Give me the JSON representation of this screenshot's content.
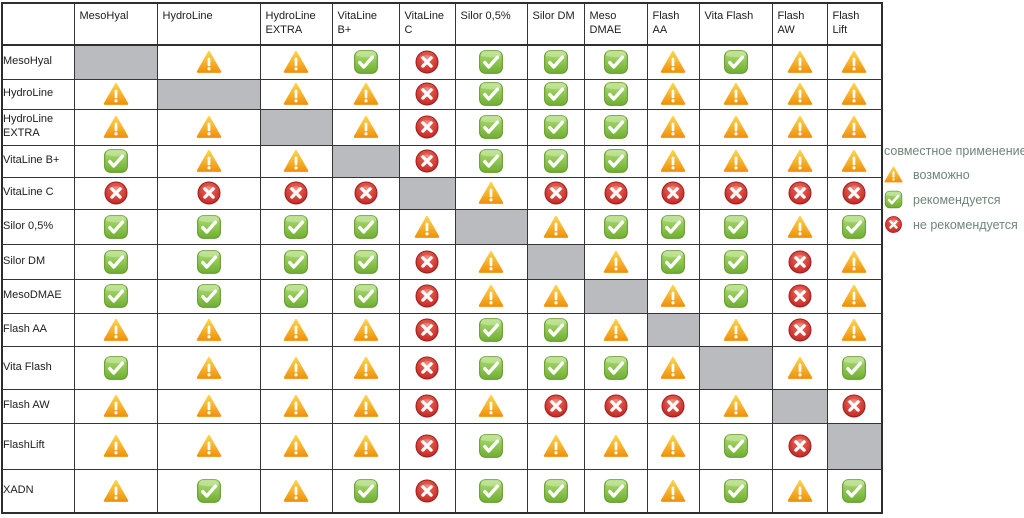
{
  "table": {
    "corner_label": "",
    "columns": [
      "MesoHyal",
      "HydroLine",
      "HydroLine EXTRA",
      "VitaLine B+",
      "VitaLine C",
      "Silor 0,5%",
      "Silor DM",
      "Meso DMAE",
      "Flash AA",
      "Vita Flash",
      "Flash AW",
      "Flash Lift"
    ],
    "rows": [
      {
        "label": "MesoHyal",
        "cells": [
          "self",
          "warn",
          "warn",
          "ok",
          "no",
          "ok",
          "ok",
          "ok",
          "warn",
          "ok",
          "warn",
          "warn"
        ]
      },
      {
        "label": "HydroLine",
        "cells": [
          "warn",
          "self",
          "warn",
          "warn",
          "no",
          "ok",
          "ok",
          "ok",
          "warn",
          "warn",
          "warn",
          "warn"
        ]
      },
      {
        "label": "HydroLine EXTRA",
        "cells": [
          "warn",
          "warn",
          "self",
          "warn",
          "no",
          "ok",
          "ok",
          "ok",
          "warn",
          "warn",
          "warn",
          "warn"
        ]
      },
      {
        "label": "VitaLine B+",
        "cells": [
          "ok",
          "warn",
          "warn",
          "self",
          "no",
          "ok",
          "ok",
          "ok",
          "warn",
          "warn",
          "warn",
          "warn"
        ]
      },
      {
        "label": "VitaLine C",
        "cells": [
          "no",
          "no",
          "no",
          "no",
          "self",
          "warn",
          "no",
          "no",
          "no",
          "no",
          "no",
          "no"
        ]
      },
      {
        "label": "Silor 0,5%",
        "cells": [
          "ok",
          "ok",
          "ok",
          "ok",
          "warn",
          "self",
          "warn",
          "ok",
          "ok",
          "ok",
          "warn",
          "ok"
        ]
      },
      {
        "label": "Silor DM",
        "cells": [
          "ok",
          "ok",
          "ok",
          "ok",
          "no",
          "warn",
          "self",
          "warn",
          "ok",
          "ok",
          "no",
          "warn"
        ]
      },
      {
        "label": "MesoDMAE",
        "cells": [
          "ok",
          "ok",
          "ok",
          "ok",
          "no",
          "warn",
          "warn",
          "self",
          "warn",
          "ok",
          "no",
          "warn"
        ]
      },
      {
        "label": "Flash AA",
        "cells": [
          "warn",
          "warn",
          "warn",
          "warn",
          "no",
          "ok",
          "ok",
          "warn",
          "self",
          "warn",
          "no",
          "warn"
        ]
      },
      {
        "label": "Vita Flash",
        "cells": [
          "ok",
          "warn",
          "warn",
          "warn",
          "no",
          "ok",
          "ok",
          "ok",
          "warn",
          "self",
          "warn",
          "ok"
        ]
      },
      {
        "label": "Flash AW",
        "cells": [
          "warn",
          "warn",
          "warn",
          "warn",
          "no",
          "warn",
          "no",
          "no",
          "no",
          "warn",
          "self",
          "no"
        ]
      },
      {
        "label": "FlashLift",
        "cells": [
          "warn",
          "warn",
          "warn",
          "warn",
          "no",
          "ok",
          "warn",
          "warn",
          "warn",
          "ok",
          "no",
          "self"
        ]
      },
      {
        "label": "XADN",
        "cells": [
          "warn",
          "ok",
          "warn",
          "ok",
          "no",
          "ok",
          "ok",
          "ok",
          "warn",
          "ok",
          "warn",
          "ok"
        ]
      }
    ]
  },
  "legend": {
    "title": "совместное применение",
    "items": [
      {
        "icon": "warning-icon",
        "symbol": "warn",
        "label": "возможно"
      },
      {
        "icon": "check-icon",
        "symbol": "ok",
        "label": "рекомендуется"
      },
      {
        "icon": "cross-icon",
        "symbol": "no",
        "label": "не рекомендуется"
      }
    ]
  },
  "colors": {
    "warn_top": "#fcd34d",
    "warn_bottom": "#f0930e",
    "ok_top": "#aede74",
    "ok_bottom": "#6fae31",
    "no_top": "#ef6d5c",
    "no_bottom": "#bb1c1c",
    "diagonal_gray": "#b9bbbe",
    "legend_text": "#6e8679",
    "grid_border": "#2e2e2e"
  },
  "chart_data": {
    "type": "table",
    "title": "совместное применение",
    "columns": [
      "MesoHyal",
      "HydroLine",
      "HydroLine EXTRA",
      "VitaLine B+",
      "VitaLine C",
      "Silor 0,5%",
      "Silor DM",
      "Meso DMAE",
      "Flash AA",
      "Vita Flash",
      "Flash AW",
      "Flash Lift"
    ],
    "row_labels": [
      "MesoHyal",
      "HydroLine",
      "HydroLine EXTRA",
      "VitaLine B+",
      "VitaLine C",
      "Silor 0,5%",
      "Silor DM",
      "MesoDMAE",
      "Flash AA",
      "Vita Flash",
      "Flash AW",
      "FlashLift",
      "XADN"
    ],
    "values": [
      [
        "self",
        "warn",
        "warn",
        "ok",
        "no",
        "ok",
        "ok",
        "ok",
        "warn",
        "ok",
        "warn",
        "warn"
      ],
      [
        "warn",
        "self",
        "warn",
        "warn",
        "no",
        "ok",
        "ok",
        "ok",
        "warn",
        "warn",
        "warn",
        "warn"
      ],
      [
        "warn",
        "warn",
        "self",
        "warn",
        "no",
        "ok",
        "ok",
        "ok",
        "warn",
        "warn",
        "warn",
        "warn"
      ],
      [
        "ok",
        "warn",
        "warn",
        "self",
        "no",
        "ok",
        "ok",
        "ok",
        "warn",
        "warn",
        "warn",
        "warn"
      ],
      [
        "no",
        "no",
        "no",
        "no",
        "self",
        "warn",
        "no",
        "no",
        "no",
        "no",
        "no",
        "no"
      ],
      [
        "ok",
        "ok",
        "ok",
        "ok",
        "warn",
        "self",
        "warn",
        "ok",
        "ok",
        "ok",
        "warn",
        "ok"
      ],
      [
        "ok",
        "ok",
        "ok",
        "ok",
        "no",
        "warn",
        "self",
        "warn",
        "ok",
        "ok",
        "no",
        "warn"
      ],
      [
        "ok",
        "ok",
        "ok",
        "ok",
        "no",
        "warn",
        "warn",
        "self",
        "warn",
        "ok",
        "no",
        "warn"
      ],
      [
        "warn",
        "warn",
        "warn",
        "warn",
        "no",
        "ok",
        "ok",
        "warn",
        "self",
        "warn",
        "no",
        "warn"
      ],
      [
        "ok",
        "warn",
        "warn",
        "warn",
        "no",
        "ok",
        "ok",
        "ok",
        "warn",
        "self",
        "warn",
        "ok"
      ],
      [
        "warn",
        "warn",
        "warn",
        "warn",
        "no",
        "warn",
        "no",
        "no",
        "no",
        "warn",
        "self",
        "no"
      ],
      [
        "warn",
        "warn",
        "warn",
        "warn",
        "no",
        "ok",
        "warn",
        "warn",
        "warn",
        "ok",
        "no",
        "self"
      ],
      [
        "warn",
        "ok",
        "warn",
        "ok",
        "no",
        "ok",
        "ok",
        "ok",
        "warn",
        "ok",
        "warn",
        "ok"
      ]
    ],
    "value_legend": {
      "warn": "возможно",
      "ok": "рекомендуется",
      "no": "не рекомендуется",
      "self": "—"
    }
  }
}
